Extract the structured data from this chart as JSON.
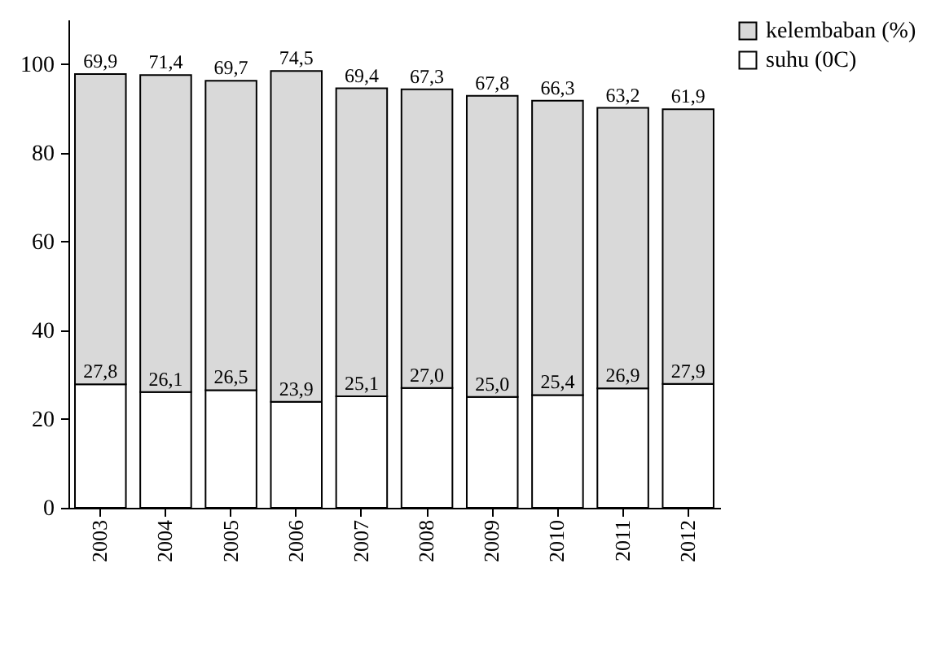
{
  "chart_data": {
    "type": "bar",
    "stacked": true,
    "categories": [
      "2003",
      "2004",
      "2005",
      "2006",
      "2007",
      "2008",
      "2009",
      "2010",
      "2011",
      "2012"
    ],
    "series": [
      {
        "name": "suhu (0C)",
        "color": "#ffffff",
        "values": [
          27.8,
          26.1,
          26.5,
          23.9,
          25.1,
          27.0,
          25.0,
          25.4,
          26.9,
          27.9
        ],
        "value_labels": [
          "27,8",
          "26,1",
          "26,5",
          "23,9",
          "25,1",
          "27,0",
          "25,0",
          "25,4",
          "26,9",
          "27,9"
        ]
      },
      {
        "name": "kelembaban (%)",
        "color": "#d9d9d9",
        "values": [
          69.9,
          71.4,
          69.7,
          74.5,
          69.4,
          67.3,
          67.8,
          66.3,
          63.2,
          61.9
        ],
        "value_labels": [
          "69,9",
          "71,4",
          "69,7",
          "74,5",
          "69,4",
          "67,3",
          "67,8",
          "66,3",
          "63,2",
          "61,9"
        ]
      }
    ],
    "ylim": [
      0,
      110
    ],
    "yticks": [
      0,
      20,
      40,
      60,
      80,
      100
    ],
    "grid": false,
    "legend": "right"
  }
}
